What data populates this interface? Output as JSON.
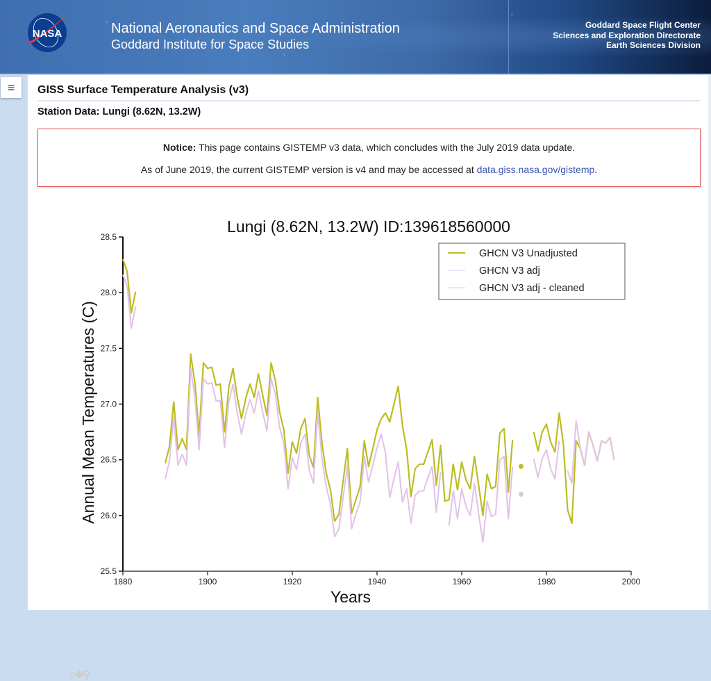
{
  "banner": {
    "org_title": "National Aeronautics and Space Administration",
    "org_subtitle": "Goddard Institute for Space Studies",
    "logo_text": "NASA",
    "center_lines": [
      "Goddard Space Flight Center",
      "Sciences and Exploration Directorate",
      "Earth Sciences Division"
    ]
  },
  "menu": {
    "icon": "hamburger-menu-icon",
    "glyph": "≡"
  },
  "page": {
    "title": "GISS Surface Temperature Analysis (v3)",
    "station": "Station Data: Lungi (8.62N, 13.2W)"
  },
  "notice": {
    "label": "Notice:",
    "line1": " This page contains GISTEMP v3 data, which concludes with the July 2019 data update.",
    "line2_prefix": "As of June 2019, the current GISTEMP version is v4 and may be accessed at ",
    "link_text": "data.giss.nasa.gov/gistemp",
    "line2_suffix": "."
  },
  "toolbar": {
    "home": "⌂",
    "pan": "✥",
    "zoom": "⚲"
  },
  "chart_data": {
    "type": "line",
    "title": "Lungi (8.62N, 13.2W) ID:139618560000",
    "xlabel": "Years",
    "ylabel": "Annual Mean Temperatures (C)",
    "xlim": [
      1880,
      2000
    ],
    "ylim": [
      25.5,
      28.5
    ],
    "xticks": [
      "1880",
      "1900",
      "1920",
      "1940",
      "1960",
      "1980",
      "2000"
    ],
    "yticks": [
      "25.5",
      "26.0",
      "26.5",
      "27.0",
      "27.5",
      "28.0",
      "28.5"
    ],
    "legend_position": "top-right",
    "grid": false,
    "series": [
      {
        "name": "GHCN V3 Unadjusted",
        "color": "#bcbd22",
        "points": [
          [
            1880,
            28.3
          ],
          [
            1881,
            28.19
          ],
          [
            1882,
            27.82
          ],
          [
            1883,
            28.01
          ],
          [
            1890,
            26.47
          ],
          [
            1891,
            26.62
          ],
          [
            1892,
            27.02
          ],
          [
            1893,
            26.59
          ],
          [
            1894,
            26.69
          ],
          [
            1895,
            26.59
          ],
          [
            1896,
            27.45
          ],
          [
            1897,
            27.19
          ],
          [
            1898,
            26.72
          ],
          [
            1899,
            27.37
          ],
          [
            1900,
            27.32
          ],
          [
            1901,
            27.33
          ],
          [
            1902,
            27.17
          ],
          [
            1903,
            27.18
          ],
          [
            1904,
            26.75
          ],
          [
            1905,
            27.15
          ],
          [
            1906,
            27.32
          ],
          [
            1907,
            27.06
          ],
          [
            1908,
            26.87
          ],
          [
            1909,
            27.05
          ],
          [
            1910,
            27.18
          ],
          [
            1911,
            27.06
          ],
          [
            1912,
            27.27
          ],
          [
            1913,
            27.08
          ],
          [
            1914,
            26.9
          ],
          [
            1915,
            27.37
          ],
          [
            1916,
            27.21
          ],
          [
            1917,
            26.93
          ],
          [
            1918,
            26.77
          ],
          [
            1919,
            26.38
          ],
          [
            1920,
            26.66
          ],
          [
            1921,
            26.56
          ],
          [
            1922,
            26.78
          ],
          [
            1923,
            26.87
          ],
          [
            1924,
            26.54
          ],
          [
            1925,
            26.43
          ],
          [
            1926,
            27.06
          ],
          [
            1927,
            26.65
          ],
          [
            1928,
            26.38
          ],
          [
            1929,
            26.23
          ],
          [
            1930,
            25.95
          ],
          [
            1931,
            26.01
          ],
          [
            1932,
            26.31
          ],
          [
            1933,
            26.6
          ],
          [
            1934,
            26.02
          ],
          [
            1935,
            26.14
          ],
          [
            1936,
            26.26
          ],
          [
            1937,
            26.67
          ],
          [
            1938,
            26.44
          ],
          [
            1939,
            26.6
          ],
          [
            1940,
            26.77
          ],
          [
            1941,
            26.87
          ],
          [
            1942,
            26.92
          ],
          [
            1943,
            26.84
          ],
          [
            1944,
            27.0
          ],
          [
            1945,
            27.16
          ],
          [
            1946,
            26.81
          ],
          [
            1947,
            26.59
          ],
          [
            1948,
            26.17
          ],
          [
            1949,
            26.42
          ],
          [
            1950,
            26.46
          ],
          [
            1951,
            26.46
          ],
          [
            1952,
            26.57
          ],
          [
            1953,
            26.68
          ],
          [
            1954,
            26.27
          ],
          [
            1955,
            26.63
          ],
          [
            1956,
            26.13
          ],
          [
            1957,
            26.14
          ],
          [
            1958,
            26.46
          ],
          [
            1959,
            26.23
          ],
          [
            1960,
            26.48
          ],
          [
            1961,
            26.32
          ],
          [
            1962,
            26.24
          ],
          [
            1963,
            26.53
          ],
          [
            1964,
            26.27
          ],
          [
            1965,
            26.0
          ],
          [
            1966,
            26.37
          ],
          [
            1967,
            26.24
          ],
          [
            1968,
            26.26
          ],
          [
            1969,
            26.74
          ],
          [
            1970,
            26.78
          ],
          [
            1971,
            26.21
          ],
          [
            1972,
            26.68
          ],
          [
            1974,
            26.44
          ],
          [
            1977,
            26.75
          ],
          [
            1978,
            26.58
          ],
          [
            1979,
            26.75
          ],
          [
            1980,
            26.82
          ],
          [
            1981,
            26.66
          ],
          [
            1982,
            26.57
          ],
          [
            1983,
            26.92
          ],
          [
            1984,
            26.64
          ],
          [
            1985,
            26.05
          ],
          [
            1986,
            25.93
          ],
          [
            1987,
            26.67
          ],
          [
            1988,
            26.6
          ],
          [
            1989,
            26.45
          ],
          [
            1990,
            26.75
          ],
          [
            1991,
            26.63
          ],
          [
            1992,
            26.49
          ],
          [
            1993,
            26.67
          ],
          [
            1994,
            26.65
          ],
          [
            1995,
            26.7
          ],
          [
            1996,
            26.5
          ]
        ]
      },
      {
        "name": "GHCN V3 adj",
        "color": "#e6e6fa",
        "points": [
          [
            1880,
            28.16
          ],
          [
            1881,
            28.06
          ],
          [
            1882,
            27.68
          ],
          [
            1883,
            27.88
          ],
          [
            1890,
            26.33
          ],
          [
            1891,
            26.49
          ],
          [
            1892,
            26.88
          ],
          [
            1893,
            26.45
          ],
          [
            1894,
            26.55
          ],
          [
            1895,
            26.45
          ],
          [
            1896,
            27.32
          ],
          [
            1897,
            27.06
          ],
          [
            1898,
            26.59
          ],
          [
            1899,
            27.23
          ],
          [
            1900,
            27.18
          ],
          [
            1901,
            27.19
          ],
          [
            1902,
            27.03
          ],
          [
            1903,
            27.03
          ],
          [
            1904,
            26.61
          ],
          [
            1905,
            27.02
          ],
          [
            1906,
            27.18
          ],
          [
            1907,
            26.92
          ],
          [
            1908,
            26.73
          ],
          [
            1909,
            26.91
          ],
          [
            1910,
            27.04
          ],
          [
            1911,
            26.92
          ],
          [
            1912,
            27.12
          ],
          [
            1913,
            26.93
          ],
          [
            1914,
            26.76
          ],
          [
            1915,
            27.23
          ],
          [
            1916,
            27.09
          ],
          [
            1917,
            26.79
          ],
          [
            1918,
            26.65
          ],
          [
            1919,
            26.24
          ],
          [
            1920,
            26.52
          ],
          [
            1921,
            26.41
          ],
          [
            1922,
            26.65
          ],
          [
            1923,
            26.73
          ],
          [
            1924,
            26.41
          ],
          [
            1925,
            26.29
          ],
          [
            1926,
            26.93
          ],
          [
            1927,
            26.51
          ],
          [
            1928,
            26.26
          ],
          [
            1929,
            26.1
          ],
          [
            1930,
            25.81
          ],
          [
            1931,
            25.88
          ],
          [
            1932,
            26.16
          ],
          [
            1933,
            26.45
          ],
          [
            1934,
            25.88
          ],
          [
            1935,
            26.01
          ],
          [
            1936,
            26.12
          ],
          [
            1937,
            26.53
          ],
          [
            1938,
            26.3
          ],
          [
            1939,
            26.45
          ],
          [
            1940,
            26.61
          ],
          [
            1941,
            26.73
          ],
          [
            1942,
            26.56
          ],
          [
            1943,
            26.16
          ],
          [
            1944,
            26.33
          ],
          [
            1945,
            26.48
          ],
          [
            1946,
            26.12
          ],
          [
            1947,
            26.24
          ],
          [
            1948,
            25.93
          ],
          [
            1949,
            26.18
          ],
          [
            1950,
            26.22
          ],
          [
            1951,
            26.22
          ],
          [
            1952,
            26.34
          ],
          [
            1953,
            26.44
          ],
          [
            1954,
            26.03
          ],
          [
            1955,
            26.39
          ],
          [
            1957,
            25.91
          ],
          [
            1958,
            26.22
          ],
          [
            1959,
            25.97
          ],
          [
            1960,
            26.24
          ],
          [
            1961,
            26.08
          ],
          [
            1962,
            26.0
          ],
          [
            1963,
            26.29
          ],
          [
            1964,
            26.01
          ],
          [
            1965,
            25.76
          ],
          [
            1966,
            26.13
          ],
          [
            1967,
            25.99
          ],
          [
            1968,
            26.01
          ],
          [
            1969,
            26.5
          ],
          [
            1970,
            26.53
          ],
          [
            1971,
            25.97
          ],
          [
            1972,
            26.44
          ],
          [
            1974,
            26.19
          ],
          [
            1977,
            26.51
          ],
          [
            1978,
            26.34
          ],
          [
            1979,
            26.51
          ],
          [
            1980,
            26.59
          ],
          [
            1981,
            26.42
          ],
          [
            1982,
            26.33
          ],
          [
            1983,
            26.67
          ],
          [
            1985,
            26.4
          ],
          [
            1986,
            26.29
          ],
          [
            1987,
            26.85
          ],
          [
            1988,
            26.6
          ],
          [
            1989,
            26.45
          ],
          [
            1990,
            26.75
          ],
          [
            1991,
            26.63
          ],
          [
            1992,
            26.49
          ],
          [
            1993,
            26.67
          ],
          [
            1994,
            26.65
          ],
          [
            1995,
            26.7
          ],
          [
            1996,
            26.5
          ]
        ]
      },
      {
        "name": "GHCN V3 adj - cleaned",
        "color": "#fde0e0",
        "same_as": "GHCN V3 adj"
      }
    ]
  }
}
